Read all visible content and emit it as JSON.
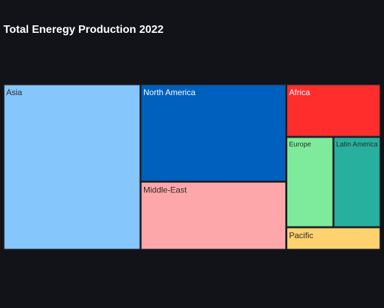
{
  "chart_data": {
    "type": "treemap",
    "title": "Total Eneregy Production 2022",
    "background": "#111318",
    "items": [
      {
        "label": "Asia",
        "value": 32,
        "color": "#85c6fd",
        "text_color": "#2a2a2a"
      },
      {
        "label": "North America",
        "value": 20,
        "color": "#0060be",
        "text_color": "#ffffff"
      },
      {
        "label": "Middle-East",
        "value": 14,
        "color": "#fea7aa",
        "text_color": "#2a2a2a"
      },
      {
        "label": "Africa",
        "value": 7,
        "color": "#ff2d2b",
        "text_color": "#ffffff"
      },
      {
        "label": "Europe",
        "value": 6,
        "color": "#7eeb9c",
        "text_color": "#2a2a2a"
      },
      {
        "label": "Latin America",
        "value": 6,
        "color": "#27b09d",
        "text_color": "#2a2a2a"
      },
      {
        "label": "Pacific",
        "value": 3,
        "color": "#fed26e",
        "text_color": "#2a2a2a"
      }
    ]
  }
}
